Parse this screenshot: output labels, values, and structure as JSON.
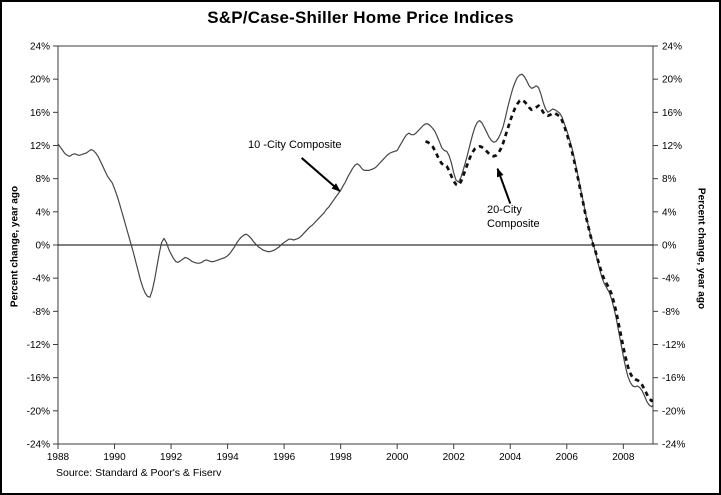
{
  "window": {
    "background": "#ffffff",
    "border_color": "#000000"
  },
  "chart_data": {
    "type": "line",
    "title": "S&P/Case-Shiller Home Price Indices",
    "ylabel_left": "Percent change, year ago",
    "ylabel_right": "Percent change, year ago",
    "source_note": "Source: Standard & Poor's & Fiserv",
    "grid": false,
    "legend_position": "inline-annotations",
    "x_axis": {
      "min": 1988,
      "max": 2009.05,
      "ticks": [
        1988,
        1990,
        1992,
        1994,
        1996,
        1998,
        2000,
        2002,
        2004,
        2006,
        2008
      ]
    },
    "y_axis": {
      "min": -24,
      "max": 24,
      "tick_step": 4,
      "suffix": "%",
      "ticks": [
        24,
        20,
        16,
        12,
        8,
        4,
        0,
        -4,
        -8,
        -12,
        -16,
        -20,
        -24
      ]
    },
    "zero_line": true,
    "axis_color": "#3d3d3d",
    "series": [
      {
        "name": "10 -City Composite",
        "line_style": "solid",
        "color": "#474747",
        "stroke_width": 1.2,
        "start_year": 1988,
        "points_per_year": 12,
        "values": [
          12.2,
          11.8,
          11.4,
          11.0,
          10.8,
          10.7,
          10.9,
          11.0,
          10.9,
          10.8,
          10.9,
          11.0,
          11.1,
          11.3,
          11.5,
          11.4,
          11.1,
          10.7,
          10.1,
          9.5,
          8.9,
          8.3,
          7.9,
          7.5,
          6.8,
          6.0,
          5.1,
          4.1,
          3.1,
          2.1,
          1.1,
          0.1,
          -0.9,
          -2.0,
          -3.1,
          -4.2,
          -5.1,
          -5.8,
          -6.2,
          -6.3,
          -5.5,
          -4.2,
          -2.6,
          -1.0,
          0.3,
          0.8,
          0.3,
          -0.5,
          -1.1,
          -1.6,
          -2.0,
          -2.1,
          -1.9,
          -1.7,
          -1.5,
          -1.6,
          -1.8,
          -2.0,
          -2.1,
          -2.2,
          -2.2,
          -2.1,
          -1.9,
          -1.8,
          -1.9,
          -2.0,
          -2.0,
          -1.9,
          -1.8,
          -1.7,
          -1.6,
          -1.5,
          -1.3,
          -1.0,
          -0.6,
          -0.2,
          0.3,
          0.7,
          1.0,
          1.2,
          1.3,
          1.1,
          0.8,
          0.4,
          0.1,
          -0.2,
          -0.4,
          -0.6,
          -0.7,
          -0.8,
          -0.8,
          -0.7,
          -0.6,
          -0.4,
          -0.2,
          0.1,
          0.3,
          0.5,
          0.7,
          0.7,
          0.6,
          0.7,
          0.8,
          1.0,
          1.3,
          1.6,
          1.9,
          2.2,
          2.4,
          2.7,
          3.0,
          3.3,
          3.6,
          3.9,
          4.3,
          4.6,
          5.0,
          5.4,
          5.8,
          6.2,
          6.6,
          7.1,
          7.6,
          8.2,
          8.7,
          9.2,
          9.6,
          9.8,
          9.6,
          9.2,
          9.0,
          9.0,
          9.0,
          9.1,
          9.2,
          9.4,
          9.7,
          10.0,
          10.3,
          10.6,
          10.9,
          11.1,
          11.2,
          11.3,
          11.4,
          11.9,
          12.4,
          12.9,
          13.3,
          13.5,
          13.3,
          13.3,
          13.5,
          13.8,
          14.1,
          14.4,
          14.6,
          14.6,
          14.4,
          14.1,
          13.7,
          13.1,
          12.4,
          11.7,
          11.4,
          11.3,
          10.8,
          9.9,
          8.7,
          7.8,
          7.6,
          8.1,
          9.0,
          10.0,
          11.1,
          12.2,
          13.3,
          14.2,
          14.8,
          15.0,
          14.7,
          14.2,
          13.6,
          13.0,
          12.6,
          12.4,
          12.5,
          12.9,
          13.5,
          14.3,
          15.4,
          16.7,
          17.8,
          18.8,
          19.6,
          20.2,
          20.5,
          20.6,
          20.3,
          19.8,
          19.2,
          18.9,
          19.0,
          19.2,
          19.0,
          18.2,
          17.2,
          16.4,
          16.0,
          16.2,
          16.4,
          16.3,
          16.1,
          15.9,
          15.4,
          14.6,
          13.8,
          12.9,
          11.9,
          10.7,
          9.4,
          8.0,
          6.6,
          5.2,
          3.8,
          2.5,
          1.3,
          0.3,
          -0.7,
          -1.9,
          -3.0,
          -4.0,
          -4.7,
          -5.2,
          -5.7,
          -6.5,
          -7.6,
          -8.9,
          -10.4,
          -11.9,
          -13.4,
          -14.8,
          -15.9,
          -16.6,
          -17.0,
          -17.1,
          -17.0,
          -17.2,
          -17.6,
          -18.2,
          -18.9,
          -19.3,
          -19.5,
          -19.2
        ]
      },
      {
        "name": "20-City Composite",
        "line_style": "dashed",
        "color": "#101010",
        "stroke_width": 2.7,
        "dash_pattern": "4.5 4",
        "start_year": 2001,
        "points_per_year": 12,
        "values": [
          12.5,
          12.4,
          12.2,
          11.9,
          11.4,
          10.8,
          10.2,
          9.8,
          9.6,
          9.5,
          9.0,
          8.3,
          7.7,
          7.3,
          7.2,
          7.6,
          8.3,
          9.1,
          9.9,
          10.6,
          11.2,
          11.6,
          11.8,
          11.9,
          11.8,
          11.6,
          11.3,
          11.0,
          10.8,
          10.7,
          10.8,
          11.1,
          11.6,
          12.3,
          13.2,
          14.1,
          15.0,
          15.8,
          16.5,
          17.0,
          17.4,
          17.5,
          17.3,
          17.0,
          16.6,
          16.3,
          16.4,
          16.6,
          16.8,
          16.5,
          16.0,
          15.7,
          15.6,
          15.7,
          15.9,
          15.9,
          15.7,
          15.5,
          15.0,
          14.3,
          13.4,
          12.5,
          11.5,
          10.3,
          9.0,
          7.7,
          6.3,
          5.0,
          3.6,
          2.4,
          1.2,
          0.2,
          -0.6,
          -1.6,
          -2.6,
          -3.5,
          -4.2,
          -4.7,
          -5.2,
          -5.9,
          -6.9,
          -8.1,
          -9.5,
          -10.9,
          -12.3,
          -13.6,
          -14.7,
          -15.5,
          -16.0,
          -16.2,
          -16.3,
          -16.5,
          -16.9,
          -17.4,
          -18.0,
          -18.5,
          -18.8,
          -18.7
        ]
      }
    ],
    "annotations": [
      {
        "text": "10 -City Composite",
        "lines": [
          "10 -City Composite"
        ],
        "arrow_from_year": 1996.62,
        "arrow_from_pct": 10.5,
        "arrow_to_year": 1997.97,
        "arrow_to_pct": 6.5
      },
      {
        "text": "20-City Composite",
        "lines": [
          "20-City",
          "Composite"
        ],
        "arrow_from_year": 2004.0,
        "arrow_from_pct": 5.0,
        "arrow_to_year": 2003.55,
        "arrow_to_pct": 9.2
      }
    ]
  }
}
